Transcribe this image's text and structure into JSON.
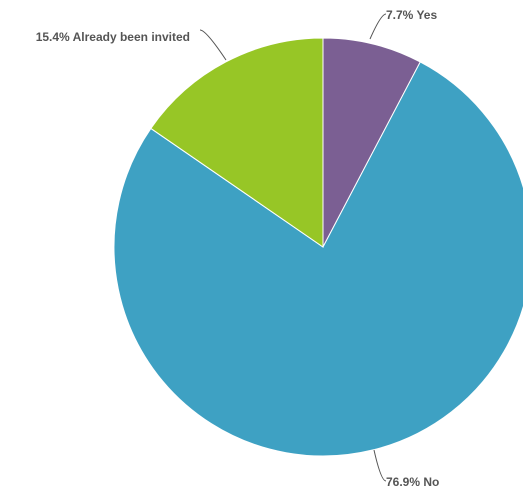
{
  "chart_data": {
    "type": "pie",
    "title": "",
    "slices": [
      {
        "name": "Yes",
        "value": 7.7,
        "label": "7.7% Yes",
        "color": "#7b5f93"
      },
      {
        "name": "No",
        "value": 76.9,
        "label": "76.9% No",
        "color": "#3ea1c3"
      },
      {
        "name": "Already been invited",
        "value": 15.4,
        "label": "15.4% Already been invited",
        "color": "#97c626"
      }
    ],
    "start_angle": "12 o'clock",
    "direction": "clockwise",
    "legend": "none"
  }
}
